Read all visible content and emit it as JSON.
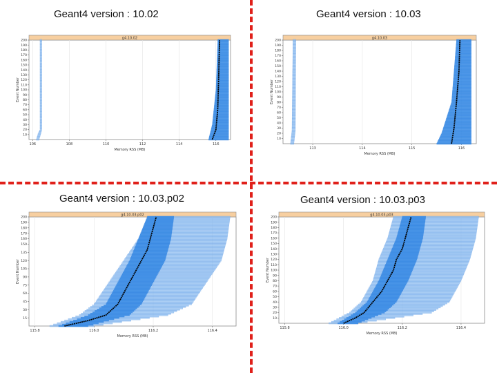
{
  "panels": [
    {
      "heading": "Geant4 version : 10.02"
    },
    {
      "heading": "Geant4 version : 10.03"
    },
    {
      "heading": "Geant4 version : 10.03.p02"
    },
    {
      "heading": "Geant4 version : 10.03.p03"
    }
  ],
  "colors": {
    "divider": "#e0201a",
    "strip": "#f7cfa0",
    "band_light": "#8fbdf0",
    "band": "#3d8ee6",
    "band_dark": "#1f6fd6",
    "median": "#000000"
  },
  "chart_data": [
    {
      "type": "scatter",
      "strip_label": "g4.10.02",
      "xlabel": "Memory RSS (MB)",
      "ylabel": "Event Number",
      "xlim": [
        105.8,
        116.8
      ],
      "ylim": [
        0,
        200
      ],
      "x_ticks": [
        {
          "v": 106,
          "label": "106"
        },
        {
          "v": 108,
          "label": "108"
        },
        {
          "v": 110,
          "label": "110"
        },
        {
          "v": 112,
          "label": "112"
        },
        {
          "v": 114,
          "label": "114"
        },
        {
          "v": 116,
          "label": "116"
        }
      ],
      "y_ticks": [
        10,
        20,
        30,
        40,
        50,
        60,
        70,
        80,
        90,
        100,
        110,
        120,
        130,
        140,
        150,
        160,
        170,
        180,
        190,
        200
      ],
      "grid": true,
      "series": [
        {
          "role": "outlier",
          "style": "light",
          "band": [
            [
              0,
              106.2,
              106.35
            ],
            [
              12,
              106.3,
              106.45
            ],
            [
              20,
              106.4,
              106.5
            ],
            [
              200,
              106.4,
              106.5
            ]
          ]
        },
        {
          "role": "band",
          "style": "band",
          "band": [
            [
              0,
              115.6,
              116.7
            ],
            [
              30,
              115.8,
              116.7
            ],
            [
              100,
              116.0,
              116.7
            ],
            [
              200,
              116.1,
              116.7
            ]
          ]
        },
        {
          "role": "median",
          "style": "median",
          "line": [
            [
              0,
              115.8
            ],
            [
              20,
              116.0
            ],
            [
              60,
              116.1
            ],
            [
              120,
              116.15
            ],
            [
              200,
              116.2
            ]
          ]
        }
      ]
    },
    {
      "type": "scatter",
      "strip_label": "g4.10.03",
      "xlabel": "Memory RSS (MB)",
      "ylabel": "Event Number",
      "xlim": [
        112.4,
        116.3
      ],
      "ylim": [
        0,
        200
      ],
      "x_ticks": [
        {
          "v": 113,
          "label": "113"
        },
        {
          "v": 114,
          "label": "114"
        },
        {
          "v": 115,
          "label": "115"
        },
        {
          "v": 116,
          "label": "116"
        }
      ],
      "y_ticks": [
        10,
        20,
        30,
        40,
        50,
        60,
        70,
        80,
        90,
        100,
        110,
        120,
        130,
        140,
        150,
        160,
        170,
        180,
        190,
        200
      ],
      "grid": true,
      "series": [
        {
          "role": "outlier",
          "style": "light",
          "band": [
            [
              0,
              112.55,
              112.62
            ],
            [
              25,
              112.58,
              112.65
            ],
            [
              200,
              112.6,
              112.66
            ]
          ]
        },
        {
          "role": "band",
          "style": "band",
          "band": [
            [
              0,
              115.5,
              116.2
            ],
            [
              20,
              115.6,
              116.2
            ],
            [
              80,
              115.8,
              116.2
            ],
            [
              140,
              115.85,
              116.2
            ],
            [
              200,
              115.9,
              116.2
            ]
          ]
        },
        {
          "role": "median",
          "style": "median",
          "line": [
            [
              0,
              115.8
            ],
            [
              30,
              115.85
            ],
            [
              80,
              115.9
            ],
            [
              140,
              115.95
            ],
            [
              200,
              115.97
            ]
          ]
        }
      ]
    },
    {
      "type": "scatter",
      "strip_label": "g4.10.03.p02",
      "xlabel": "Memory RSS (MB)",
      "ylabel": "Event Number",
      "xlim": [
        115.78,
        116.48
      ],
      "ylim": [
        0,
        200
      ],
      "x_ticks": [
        {
          "v": 115.8,
          "label": "115.8"
        },
        {
          "v": 116.0,
          "label": "116.0"
        },
        {
          "v": 116.2,
          "label": "116.2"
        },
        {
          "v": 116.4,
          "label": "116.4"
        }
      ],
      "y_ticks": [
        15,
        30,
        45,
        60,
        75,
        90,
        105,
        120,
        135,
        150,
        160,
        170,
        180,
        190,
        200
      ],
      "grid": true,
      "series": [
        {
          "role": "outer",
          "style": "light",
          "band": [
            [
              0,
              115.85,
              116.0
            ],
            [
              20,
              115.95,
              116.25
            ],
            [
              40,
              116.0,
              116.33
            ],
            [
              80,
              116.05,
              116.38
            ],
            [
              120,
              116.1,
              116.43
            ],
            [
              160,
              116.15,
              116.45
            ],
            [
              200,
              116.18,
              116.46
            ]
          ]
        },
        {
          "role": "band",
          "style": "band",
          "band": [
            [
              0,
              115.88,
              115.98
            ],
            [
              20,
              115.98,
              116.12
            ],
            [
              40,
              116.04,
              116.16
            ],
            [
              80,
              116.08,
              116.2
            ],
            [
              120,
              116.12,
              116.24
            ],
            [
              160,
              116.15,
              116.26
            ],
            [
              200,
              116.18,
              116.27
            ]
          ]
        },
        {
          "role": "median",
          "style": "median",
          "line": [
            [
              0,
              115.9
            ],
            [
              10,
              115.98
            ],
            [
              20,
              116.04
            ],
            [
              40,
              116.08
            ],
            [
              60,
              116.1
            ],
            [
              80,
              116.12
            ],
            [
              100,
              116.14
            ],
            [
              120,
              116.16
            ],
            [
              140,
              116.18
            ],
            [
              160,
              116.19
            ],
            [
              180,
              116.2
            ],
            [
              200,
              116.21
            ]
          ]
        }
      ]
    },
    {
      "type": "scatter",
      "strip_label": "g4.10.03.p03",
      "xlabel": "Memory RSS (MB)",
      "ylabel": "Event Number",
      "xlim": [
        115.78,
        116.48
      ],
      "ylim": [
        0,
        200
      ],
      "x_ticks": [
        {
          "v": 115.8,
          "label": "115.8"
        },
        {
          "v": 116.0,
          "label": "116.0"
        },
        {
          "v": 116.2,
          "label": "116.2"
        },
        {
          "v": 116.4,
          "label": "116.4"
        }
      ],
      "y_ticks": [
        10,
        20,
        30,
        40,
        50,
        60,
        70,
        80,
        90,
        100,
        110,
        120,
        130,
        140,
        150,
        160,
        170,
        180,
        190,
        200
      ],
      "grid": true,
      "series": [
        {
          "role": "outer",
          "style": "light",
          "band": [
            [
              0,
              115.95,
              116.05
            ],
            [
              20,
              116.02,
              116.3
            ],
            [
              40,
              116.06,
              116.36
            ],
            [
              80,
              116.1,
              116.4
            ],
            [
              120,
              116.12,
              116.43
            ],
            [
              160,
              116.15,
              116.45
            ],
            [
              200,
              116.17,
              116.46
            ]
          ]
        },
        {
          "role": "band",
          "style": "band",
          "band": [
            [
              0,
              115.98,
              116.05
            ],
            [
              20,
              116.04,
              116.14
            ],
            [
              40,
              116.08,
              116.18
            ],
            [
              80,
              116.12,
              116.22
            ],
            [
              120,
              116.15,
              116.25
            ],
            [
              160,
              116.18,
              116.27
            ],
            [
              200,
              116.2,
              116.28
            ]
          ]
        },
        {
          "role": "median",
          "style": "median",
          "line": [
            [
              0,
              116.0
            ],
            [
              10,
              116.04
            ],
            [
              20,
              116.07
            ],
            [
              40,
              116.1
            ],
            [
              60,
              116.13
            ],
            [
              80,
              116.15
            ],
            [
              100,
              116.17
            ],
            [
              120,
              116.18
            ],
            [
              140,
              116.2
            ],
            [
              160,
              116.21
            ],
            [
              180,
              116.22
            ],
            [
              200,
              116.23
            ]
          ]
        }
      ]
    }
  ]
}
